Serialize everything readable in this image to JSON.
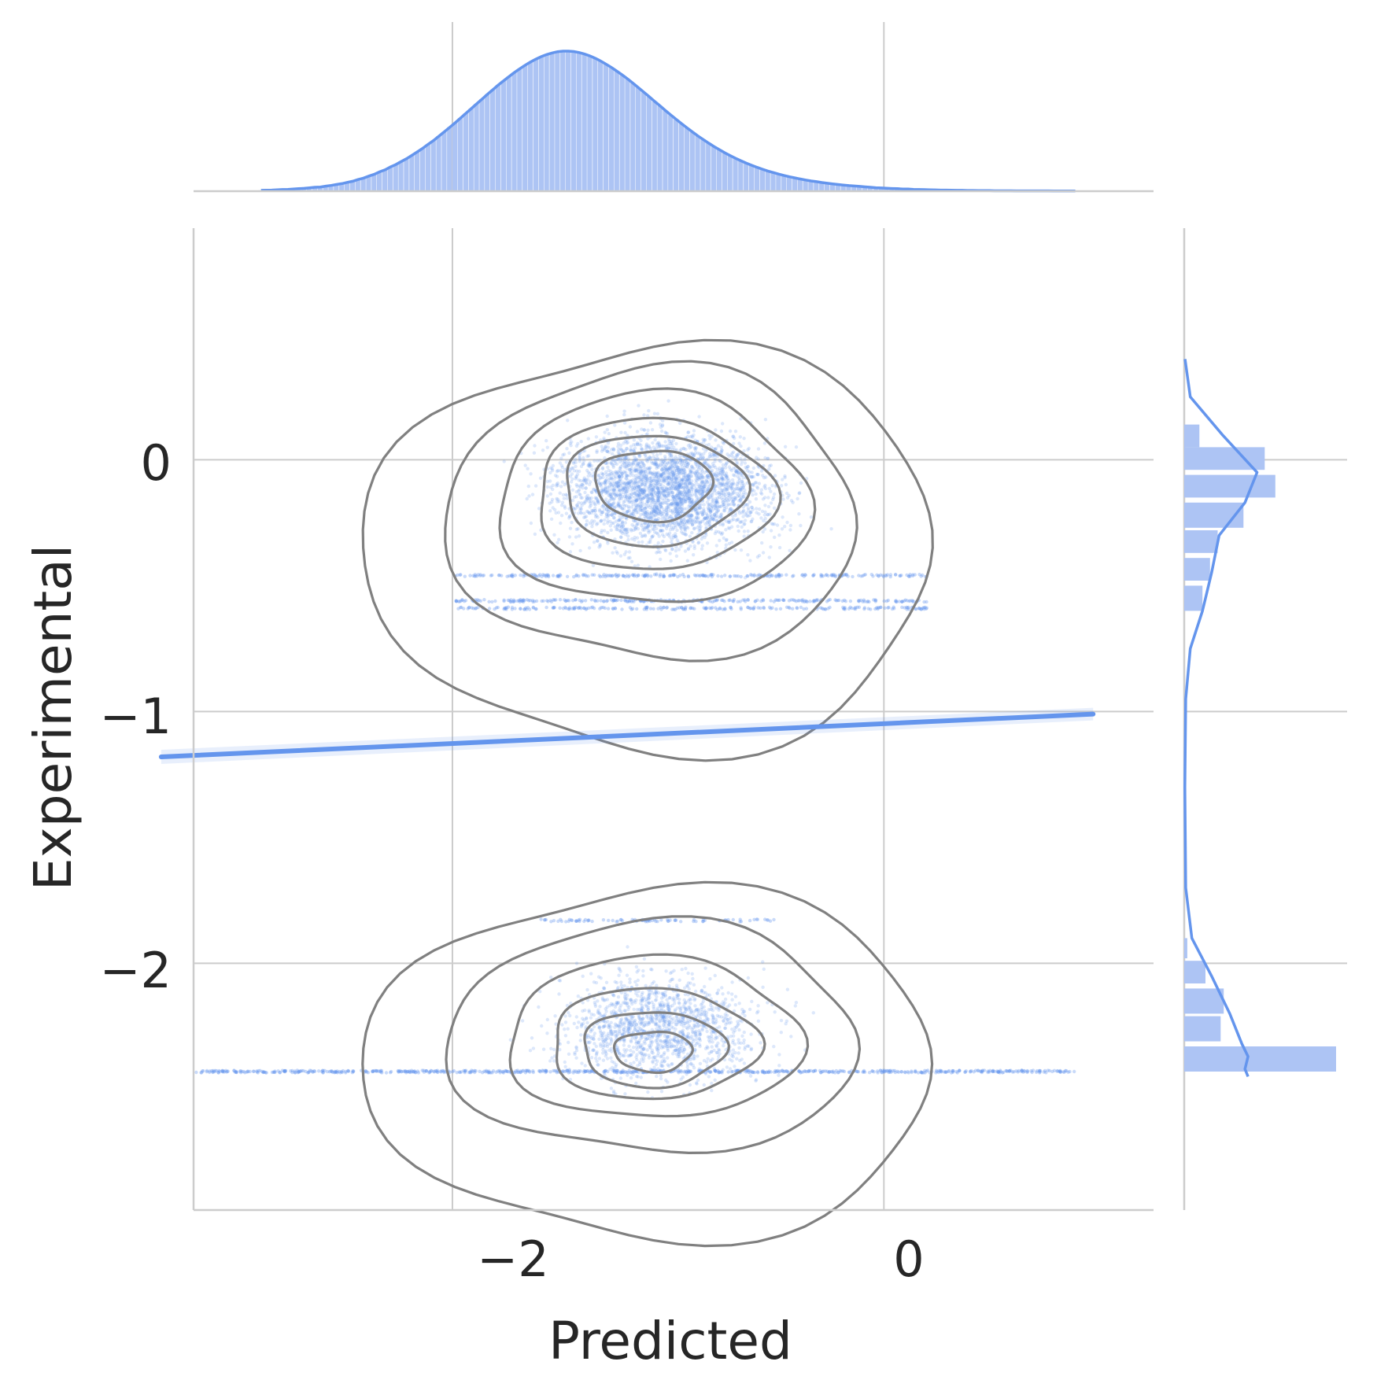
{
  "chart_data": {
    "type": "scatter",
    "variant": "jointplot with regression line, KDE contours and marginal histograms",
    "xlabel": "Predicted",
    "ylabel": "Experimental",
    "xlim": [
      -3.2,
      1.25
    ],
    "ylim": [
      -2.98,
      0.92
    ],
    "x_ticks": [
      -2,
      0
    ],
    "y_ticks": [
      0,
      -1,
      -2
    ],
    "x_tick_labels": [
      "−2",
      "0"
    ],
    "y_tick_labels": [
      "0",
      "−1",
      "−2"
    ],
    "grid": true,
    "colors": {
      "points": "#6495ed",
      "regression": "#6495ed",
      "contours": "#808080",
      "marginal_bars": "#adc4f4",
      "grid": "#cccccc"
    },
    "regression_line": {
      "x": [
        -3.35,
        0.97
      ],
      "y": [
        -1.18,
        -1.01
      ]
    },
    "point_clusters": [
      {
        "center_x": -1.0,
        "center_y": -0.12,
        "sd_x": 0.48,
        "sd_y": 0.22,
        "count": 3200
      },
      {
        "center_x": -1.05,
        "center_y": -2.25,
        "sd_x": 0.45,
        "sd_y": 0.2,
        "count": 1500
      }
    ],
    "point_bands": [
      {
        "y": -0.46,
        "x_range": [
          -2.0,
          0.2
        ],
        "count": 260
      },
      {
        "y": -0.56,
        "x_range": [
          -2.0,
          0.2
        ],
        "count": 260
      },
      {
        "y": -0.59,
        "x_range": [
          -2.0,
          0.2
        ],
        "count": 220
      },
      {
        "y": -1.83,
        "x_range": [
          -1.6,
          -0.5
        ],
        "count": 90
      },
      {
        "y": -2.43,
        "x_range": [
          -3.2,
          0.9
        ],
        "count": 700
      }
    ],
    "kde_contours": [
      {
        "cx": -1.07,
        "cy": -0.1,
        "rx": 0.27,
        "ry": 0.14
      },
      {
        "cx": -1.07,
        "cy": -0.12,
        "rx": 0.42,
        "ry": 0.22
      },
      {
        "cx": -1.07,
        "cy": -0.14,
        "rx": 0.55,
        "ry": 0.3
      },
      {
        "cx": -1.07,
        "cy": -0.16,
        "rx": 0.72,
        "ry": 0.42
      },
      {
        "cx": -1.07,
        "cy": -0.22,
        "rx": 0.95,
        "ry": 0.58
      },
      {
        "cx": -1.07,
        "cy": -0.35,
        "rx": 1.32,
        "ry": 0.81
      },
      {
        "cx": -1.07,
        "cy": -2.35,
        "rx": 0.18,
        "ry": 0.08
      },
      {
        "cx": -1.07,
        "cy": -2.34,
        "rx": 0.33,
        "ry": 0.15
      },
      {
        "cx": -1.07,
        "cy": -2.32,
        "rx": 0.48,
        "ry": 0.22
      },
      {
        "cx": -1.07,
        "cy": -2.3,
        "rx": 0.68,
        "ry": 0.32
      },
      {
        "cx": -1.07,
        "cy": -2.3,
        "rx": 0.95,
        "ry": 0.46
      },
      {
        "cx": -1.07,
        "cy": -2.4,
        "rx": 1.32,
        "ry": 0.7
      }
    ],
    "marginal_x": {
      "type": "histogram+kde",
      "bin_start": -2.9,
      "bin_width": 0.025,
      "peak_x": -1.05,
      "peak_count": 100,
      "counts": [
        0.6,
        0.7,
        0.8,
        1.0,
        1.2,
        1.3,
        1.6,
        1.8,
        2.0,
        2.4,
        2.8,
        3.0,
        3.6,
        4.1,
        4.8,
        5.4,
        6.3,
        7.1,
        8.3,
        9.3,
        10.8,
        12.0,
        13.8,
        15.2,
        17.3,
        19.0,
        21.2,
        23.2,
        25.6,
        28.1,
        30.7,
        33.5,
        36.2,
        39.3,
        42.4,
        45.6,
        48.8,
        52.2,
        55.6,
        59.0,
        62.4,
        65.8,
        69.2,
        72.5,
        75.8,
        78.9,
        81.9,
        84.8,
        87.5,
        90.0,
        92.3,
        94.3,
        96.1,
        97.6,
        98.7,
        99.6,
        100.0,
        100.0,
        99.7,
        99.0,
        97.9,
        96.6,
        94.9,
        92.9,
        90.7,
        88.3,
        85.7,
        83.0,
        80.1,
        77.0,
        73.9,
        70.7,
        67.4,
        64.1,
        60.9,
        57.6,
        54.4,
        51.3,
        48.2,
        45.2,
        42.3,
        39.5,
        36.9,
        34.3,
        31.9,
        29.6,
        27.4,
        25.4,
        23.5,
        21.7,
        20.0,
        18.5,
        17.0,
        15.7,
        14.4,
        13.3,
        12.2,
        11.2,
        10.3,
        9.5,
        8.7,
        8.0,
        7.3,
        6.8,
        6.2,
        5.7,
        5.2,
        4.8,
        4.4,
        4.0,
        3.7,
        3.4,
        3.1,
        2.8,
        2.5,
        2.3,
        2.1,
        1.9,
        1.8,
        1.6,
        1.5,
        1.3,
        1.2,
        1.1,
        1.0,
        0.9,
        0.8,
        0.8,
        0.7,
        0.6,
        0.6,
        0.5,
        0.5,
        0.4,
        0.4,
        0.4,
        0.3,
        0.3,
        0.3,
        0.3,
        0.2,
        0.2,
        0.2,
        0.2,
        0.2,
        0.2,
        0.2,
        0.1,
        0.1,
        0.1,
        0.1,
        0.1
      ]
    },
    "marginal_y": {
      "type": "histogram+kde",
      "bins": [
        {
          "y_from": 0.14,
          "y_to": 0.05,
          "count": 10
        },
        {
          "y_from": 0.05,
          "y_to": -0.04,
          "count": 53
        },
        {
          "y_from": -0.06,
          "y_to": -0.15,
          "count": 60
        },
        {
          "y_from": -0.17,
          "y_to": -0.27,
          "count": 39
        },
        {
          "y_from": -0.28,
          "y_to": -0.37,
          "count": 22
        },
        {
          "y_from": -0.39,
          "y_to": -0.48,
          "count": 17
        },
        {
          "y_from": -0.5,
          "y_to": -0.6,
          "count": 12
        },
        {
          "y_from": -1.9,
          "y_to": -1.98,
          "count": 2
        },
        {
          "y_from": -1.99,
          "y_to": -2.08,
          "count": 14
        },
        {
          "y_from": -2.1,
          "y_to": -2.2,
          "count": 26
        },
        {
          "y_from": -2.21,
          "y_to": -2.31,
          "count": 24
        },
        {
          "y_from": -2.33,
          "y_to": -2.43,
          "count": 100
        }
      ],
      "kde": [
        {
          "y": 0.4,
          "density": 0.5
        },
        {
          "y": 0.25,
          "density": 4
        },
        {
          "y": 0.1,
          "density": 25
        },
        {
          "y": -0.05,
          "density": 48
        },
        {
          "y": -0.17,
          "density": 40
        },
        {
          "y": -0.3,
          "density": 23
        },
        {
          "y": -0.45,
          "density": 18
        },
        {
          "y": -0.6,
          "density": 12
        },
        {
          "y": -0.75,
          "density": 4
        },
        {
          "y": -0.95,
          "density": 1
        },
        {
          "y": -1.3,
          "density": 0.4
        },
        {
          "y": -1.7,
          "density": 1
        },
        {
          "y": -1.9,
          "density": 5
        },
        {
          "y": -2.05,
          "density": 18
        },
        {
          "y": -2.2,
          "density": 30
        },
        {
          "y": -2.32,
          "density": 38
        },
        {
          "y": -2.37,
          "density": 42
        },
        {
          "y": -2.42,
          "density": 40
        },
        {
          "y": -2.45,
          "density": 42
        }
      ]
    }
  }
}
